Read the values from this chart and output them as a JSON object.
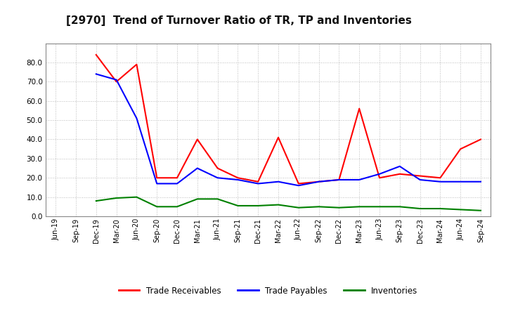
{
  "title": "[2970]  Trend of Turnover Ratio of TR, TP and Inventories",
  "x_labels": [
    "Jun-19",
    "Sep-19",
    "Dec-19",
    "Mar-20",
    "Jun-20",
    "Sep-20",
    "Dec-20",
    "Mar-21",
    "Jun-21",
    "Sep-21",
    "Dec-21",
    "Mar-22",
    "Jun-22",
    "Sep-22",
    "Dec-22",
    "Mar-23",
    "Jun-23",
    "Sep-23",
    "Dec-23",
    "Mar-24",
    "Jun-24",
    "Sep-24"
  ],
  "trade_receivables": [
    null,
    null,
    84.0,
    70.0,
    79.0,
    20.0,
    20.0,
    40.0,
    25.0,
    20.0,
    18.0,
    41.0,
    17.0,
    18.0,
    19.0,
    56.0,
    20.0,
    22.0,
    21.0,
    20.0,
    35.0,
    40.0
  ],
  "trade_payables": [
    null,
    null,
    74.0,
    71.0,
    51.0,
    17.0,
    17.0,
    25.0,
    20.0,
    19.0,
    17.0,
    18.0,
    16.0,
    18.0,
    19.0,
    19.0,
    22.0,
    26.0,
    19.0,
    18.0,
    18.0,
    18.0
  ],
  "inventories": [
    null,
    null,
    8.0,
    9.5,
    10.0,
    5.0,
    5.0,
    9.0,
    9.0,
    5.5,
    5.5,
    6.0,
    4.5,
    5.0,
    4.5,
    5.0,
    5.0,
    5.0,
    4.0,
    4.0,
    3.5,
    3.0
  ],
  "ylim": [
    0.0,
    90.0
  ],
  "yticks": [
    0.0,
    10.0,
    20.0,
    30.0,
    40.0,
    50.0,
    60.0,
    70.0,
    80.0
  ],
  "tr_color": "#ff0000",
  "tp_color": "#0000ff",
  "inv_color": "#008000",
  "bg_color": "#ffffff",
  "plot_bg_color": "#ffffff",
  "grid_color": "#aaaaaa",
  "title_fontsize": 11,
  "tick_fontsize": 7,
  "ytick_fontsize": 7.5,
  "legend_labels": [
    "Trade Receivables",
    "Trade Payables",
    "Inventories"
  ],
  "line_width": 1.5
}
